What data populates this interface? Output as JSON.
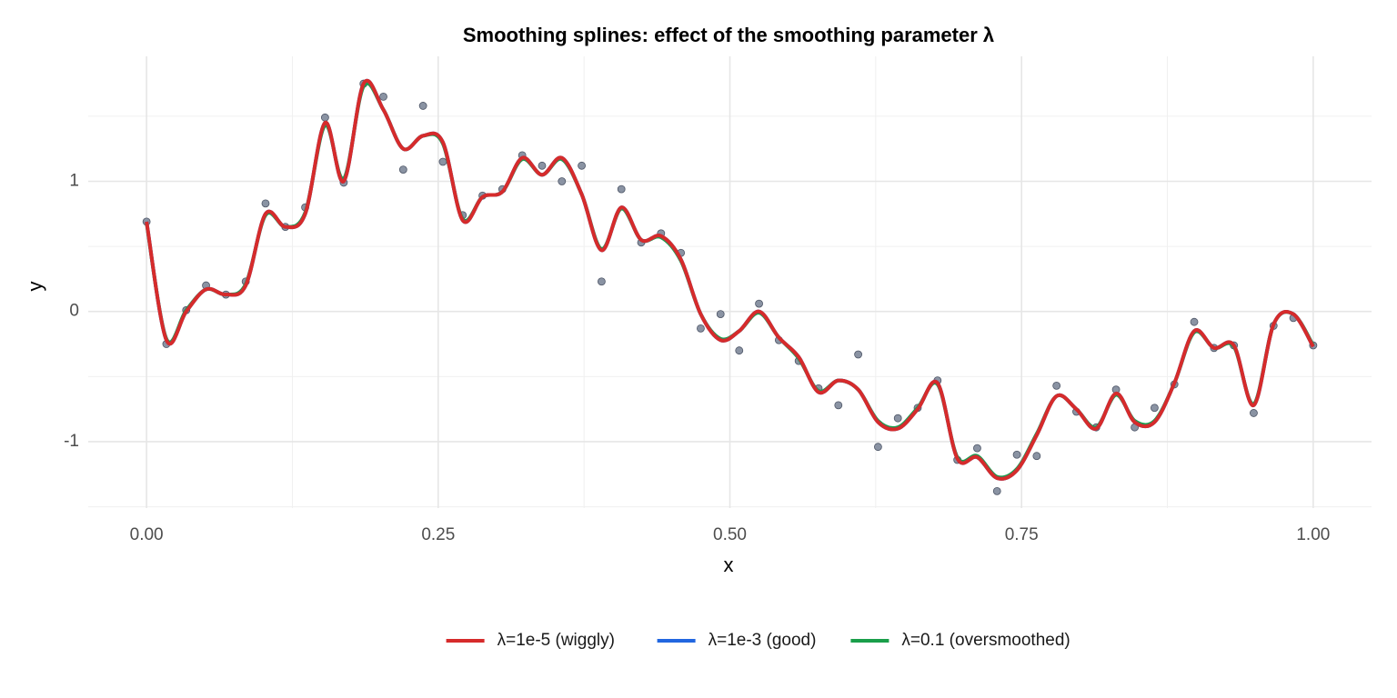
{
  "chart_data": {
    "type": "line",
    "title": "Smoothing splines: effect of the smoothing parameter λ",
    "x_label": "x",
    "y_label": "y",
    "x": [
      0,
      0.017,
      0.034,
      0.051,
      0.068,
      0.085,
      0.102,
      0.119,
      0.136,
      0.153,
      0.169,
      0.186,
      0.203,
      0.22,
      0.237,
      0.254,
      0.271,
      0.288,
      0.305,
      0.322,
      0.339,
      0.356,
      0.373,
      0.39,
      0.407,
      0.424,
      0.441,
      0.458,
      0.475,
      0.492,
      0.508,
      0.525,
      0.542,
      0.559,
      0.576,
      0.593,
      0.61,
      0.627,
      0.644,
      0.661,
      0.678,
      0.695,
      0.712,
      0.729,
      0.746,
      0.763,
      0.78,
      0.797,
      0.814,
      0.831,
      0.847,
      0.864,
      0.881,
      0.898,
      0.915,
      0.932,
      0.949,
      0.966,
      0.983,
      1
    ],
    "points": {
      "color": "#8a93a3",
      "stroke": "#4d5566",
      "y": [
        0.69,
        -0.25,
        0.01,
        0.2,
        0.13,
        0.23,
        0.83,
        0.65,
        0.8,
        1.49,
        0.99,
        1.75,
        1.65,
        1.09,
        1.58,
        1.15,
        0.74,
        0.89,
        0.94,
        1.2,
        1.12,
        1.0,
        1.12,
        0.23,
        0.94,
        0.53,
        0.6,
        0.45,
        -0.13,
        -0.02,
        -0.3,
        0.06,
        -0.22,
        -0.38,
        -0.59,
        -0.72,
        -0.33,
        -1.04,
        -0.82,
        -0.74,
        -0.53,
        -1.14,
        -1.05,
        -1.38,
        -1.1,
        -1.11,
        -0.57,
        -0.77,
        -0.89,
        -0.6,
        -0.89,
        -0.74,
        -0.56,
        -0.08,
        -0.28,
        -0.26,
        -0.78,
        -0.11,
        -0.05,
        -0.26
      ]
    },
    "series": [
      {
        "name": "λ=1e-5 (wiggly)",
        "color": "#d62b2b",
        "values": [
          0.69,
          -0.22,
          0.0,
          0.17,
          0.13,
          0.2,
          0.75,
          0.65,
          0.75,
          1.45,
          1.0,
          1.75,
          1.55,
          1.25,
          1.35,
          1.3,
          0.7,
          0.88,
          0.92,
          1.18,
          1.05,
          1.18,
          0.9,
          0.47,
          0.8,
          0.55,
          0.58,
          0.4,
          -0.02,
          -0.22,
          -0.15,
          0.0,
          -0.2,
          -0.35,
          -0.62,
          -0.53,
          -0.6,
          -0.85,
          -0.9,
          -0.75,
          -0.55,
          -1.13,
          -1.12,
          -1.28,
          -1.22,
          -0.95,
          -0.65,
          -0.75,
          -0.9,
          -0.63,
          -0.85,
          -0.85,
          -0.55,
          -0.15,
          -0.28,
          -0.26,
          -0.72,
          -0.1,
          -0.02,
          -0.27
        ]
      },
      {
        "name": "λ=1e-3 (good)",
        "color": "#2166e0",
        "values": [
          0.69,
          -0.22,
          0.0,
          0.17,
          0.13,
          0.2,
          0.75,
          0.65,
          0.75,
          1.45,
          1.0,
          1.75,
          1.55,
          1.25,
          1.35,
          1.3,
          0.7,
          0.88,
          0.92,
          1.18,
          1.05,
          1.18,
          0.9,
          0.47,
          0.8,
          0.55,
          0.58,
          0.4,
          -0.02,
          -0.22,
          -0.15,
          0.0,
          -0.2,
          -0.35,
          -0.62,
          -0.53,
          -0.6,
          -0.85,
          -0.9,
          -0.75,
          -0.55,
          -1.13,
          -1.12,
          -1.28,
          -1.22,
          -0.95,
          -0.65,
          -0.75,
          -0.9,
          -0.63,
          -0.85,
          -0.85,
          -0.55,
          -0.15,
          -0.28,
          -0.26,
          -0.72,
          -0.1,
          -0.02,
          -0.27
        ]
      },
      {
        "name": "λ=0.1 (oversmoothed)",
        "color": "#1a9e4a",
        "values": [
          0.68,
          -0.21,
          0.01,
          0.17,
          0.13,
          0.21,
          0.74,
          0.65,
          0.76,
          1.43,
          1.02,
          1.73,
          1.55,
          1.25,
          1.35,
          1.29,
          0.71,
          0.88,
          0.92,
          1.17,
          1.05,
          1.17,
          0.9,
          0.48,
          0.79,
          0.55,
          0.57,
          0.39,
          -0.02,
          -0.21,
          -0.15,
          -0.01,
          -0.2,
          -0.36,
          -0.61,
          -0.53,
          -0.6,
          -0.84,
          -0.89,
          -0.74,
          -0.56,
          -1.12,
          -1.11,
          -1.27,
          -1.21,
          -0.94,
          -0.65,
          -0.75,
          -0.89,
          -0.64,
          -0.84,
          -0.84,
          -0.55,
          -0.16,
          -0.28,
          -0.27,
          -0.71,
          -0.1,
          -0.02,
          -0.26
        ]
      }
    ],
    "xlim": [
      -0.05,
      1.05
    ],
    "xticks": [
      {
        "value": 0,
        "label": "0.00"
      },
      {
        "value": 0.25,
        "label": "0.25"
      },
      {
        "value": 0.5,
        "label": "0.50"
      },
      {
        "value": 0.75,
        "label": "0.75"
      },
      {
        "value": 1,
        "label": "1.00"
      }
    ],
    "x_minor_ticks": [
      0.125,
      0.375,
      0.625,
      0.875
    ],
    "ylim": [
      -1.51,
      1.96
    ],
    "yticks": [
      -1,
      0,
      1
    ],
    "y_minor_ticks": [
      -1.5,
      -0.5,
      0.5,
      1.5
    ],
    "grid": true,
    "legend": "bottom"
  }
}
